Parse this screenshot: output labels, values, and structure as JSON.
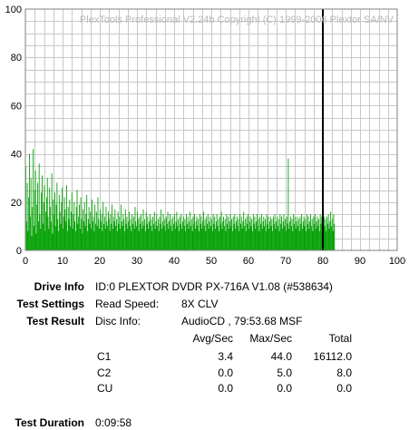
{
  "app": {
    "copyright": "PlexTools Professional V2.24b Copyright (C) 1999-2006 Plextor SA/NV"
  },
  "chart_data": {
    "type": "bar",
    "xlim": [
      0,
      100
    ],
    "ylim": [
      0,
      100
    ],
    "x_ticks": [
      "0",
      "10",
      "20",
      "30",
      "40",
      "50",
      "60",
      "70",
      "80",
      "90",
      "100"
    ],
    "y_ticks": [
      "100",
      "80",
      "60",
      "40",
      "20",
      "0"
    ],
    "grid": true,
    "series": [
      {
        "color": "#00a000",
        "x_start": 0.0,
        "x_step": 0.2,
        "values": [
          35,
          12,
          28,
          8,
          22,
          40,
          14,
          30,
          6,
          18,
          42,
          10,
          25,
          33,
          7,
          19,
          28,
          12,
          36,
          15,
          9,
          24,
          31,
          11,
          20,
          27,
          8,
          16,
          22,
          30,
          14,
          9,
          26,
          18,
          12,
          32,
          7,
          21,
          15,
          24,
          10,
          19,
          28,
          13,
          8,
          23,
          16,
          11,
          20,
          26,
          9,
          14,
          22,
          17,
          12,
          27,
          8,
          18,
          13,
          21,
          10,
          16,
          24,
          9,
          15,
          20,
          12,
          8,
          18,
          25,
          11,
          14,
          19,
          9,
          22,
          13,
          7,
          17,
          12,
          20,
          10,
          15,
          23,
          8,
          13,
          18,
          11,
          16,
          9,
          21,
          12,
          14,
          8,
          19,
          11,
          16,
          10,
          22,
          13,
          9,
          17,
          12,
          15,
          8,
          20,
          11,
          14,
          9,
          18,
          12,
          10,
          16,
          13,
          8,
          15,
          11,
          19,
          9,
          14,
          12,
          17,
          10,
          13,
          8,
          16,
          11,
          14,
          9,
          19,
          12,
          10,
          15,
          13,
          8,
          17,
          11,
          14,
          9,
          12,
          16,
          10,
          13,
          8,
          15,
          11,
          14,
          9,
          18,
          12,
          10,
          16,
          13,
          8,
          14,
          11,
          15,
          9,
          12,
          17,
          10,
          13,
          8,
          16,
          11,
          14,
          9,
          12,
          15,
          10,
          13,
          8,
          14,
          11,
          16,
          9,
          12,
          15,
          10,
          13,
          8,
          14,
          11,
          17,
          9,
          12,
          15,
          10,
          13,
          8,
          14,
          11,
          16,
          9,
          12,
          15,
          10,
          13,
          8,
          14,
          11,
          15,
          9,
          12,
          16,
          10,
          13,
          8,
          14,
          11,
          15,
          9,
          12,
          14,
          10,
          13,
          8,
          15,
          11,
          14,
          9,
          12,
          16,
          10,
          13,
          8,
          14,
          11,
          15,
          9,
          12,
          14,
          10,
          13,
          8,
          15,
          11,
          14,
          9,
          12,
          16,
          10,
          13,
          8,
          14,
          11,
          15,
          9,
          12,
          14,
          10,
          13,
          8,
          15,
          11,
          14,
          9,
          12,
          15,
          10,
          13,
          8,
          14,
          11,
          16,
          9,
          12,
          14,
          10,
          13,
          8,
          15,
          11,
          14,
          9,
          12,
          15,
          10,
          13,
          8,
          14,
          11,
          15,
          9,
          12,
          14,
          10,
          13,
          8,
          15,
          11,
          14,
          9,
          12,
          16,
          10,
          13,
          8,
          14,
          11,
          15,
          9,
          12,
          14,
          10,
          13,
          8,
          15,
          11,
          14,
          9,
          12,
          15,
          10,
          13,
          8,
          14,
          11,
          15,
          9,
          12,
          14,
          10,
          13,
          8,
          15,
          11,
          14,
          9,
          12,
          14,
          10,
          13,
          8,
          14,
          11,
          15,
          9,
          12,
          14,
          10,
          13,
          8,
          15,
          11,
          14,
          9,
          12,
          15,
          10,
          13,
          8,
          14,
          11,
          38,
          9,
          12,
          14,
          10,
          13,
          8,
          15,
          11,
          14,
          9,
          12,
          14,
          10,
          13,
          8,
          14,
          11,
          15,
          9,
          12,
          14,
          10,
          13,
          8,
          15,
          11,
          14,
          9,
          12,
          15,
          10,
          13,
          8,
          14,
          11,
          15,
          9,
          12,
          14,
          10,
          13,
          8,
          15,
          11,
          14,
          9,
          12,
          14,
          10,
          13,
          8,
          14,
          11,
          15,
          9,
          12,
          16,
          10,
          13,
          8,
          15,
          11
        ]
      }
    ],
    "end_marker_x": 80
  },
  "info": {
    "drive_label": "Drive Info",
    "drive_value": "ID:0 PLEXTOR DVDR PX-716A V1.08 (#538634)",
    "settings_label": "Test Settings",
    "read_speed_label": "Read Speed:",
    "read_speed_value": "8X CLV",
    "result_label": "Test Result",
    "disc_info_label": "Disc Info:",
    "disc_info_value": "AudioCD , 79:53.68 MSF",
    "table": {
      "headers": [
        "Avg/Sec",
        "Max/Sec",
        "Total"
      ],
      "rows": [
        {
          "name": "C1",
          "avg": "3.4",
          "max": "44.0",
          "total": "16112.0"
        },
        {
          "name": "C2",
          "avg": "0.0",
          "max": "5.0",
          "total": "8.0"
        },
        {
          "name": "CU",
          "avg": "0.0",
          "max": "0.0",
          "total": "0.0"
        }
      ]
    },
    "duration_label": "Test Duration",
    "duration_value": "0:09:58"
  }
}
